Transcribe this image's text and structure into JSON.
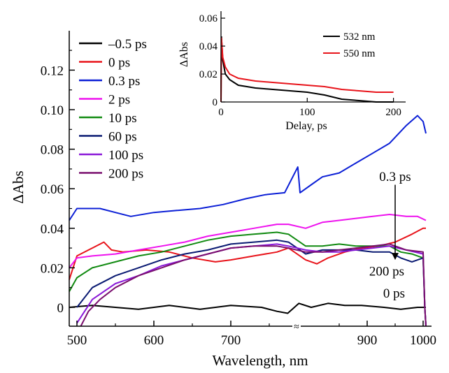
{
  "chart_data": [
    {
      "type": "line",
      "xlabel": "Wavelength, nm",
      "ylabel": "ΔAbs",
      "xticks": [
        500,
        600,
        700,
        900,
        1000
      ],
      "xtick_labels": [
        "500",
        "600",
        "700",
        "900",
        "1000"
      ],
      "yticks": [
        0,
        0.02,
        0.04,
        0.06,
        0.08,
        0.1,
        0.12
      ],
      "ytick_labels": [
        "0",
        "0.02",
        "0.04",
        "0.06",
        "0.08",
        "0.10",
        "0.12"
      ],
      "ylim": [
        -0.009,
        0.135
      ],
      "axis_break": "≈",
      "legend_position": "top-left",
      "series": [
        {
          "name": "–0.5 ps",
          "color": "#000000",
          "points": [
            [
              490,
              0.0
            ],
            [
              520,
              0.001
            ],
            [
              550,
              0.0
            ],
            [
              580,
              -0.001
            ],
            [
              620,
              0.001
            ],
            [
              660,
              -0.001
            ],
            [
              700,
              0.001
            ],
            [
              740,
              0.0
            ],
            [
              760,
              -0.002
            ],
            [
              774,
              -0.003
            ],
            [
              778,
              0.002
            ],
            [
              800,
              0.0
            ],
            [
              830,
              0.002
            ],
            [
              860,
              0.001
            ],
            [
              890,
              0.001
            ],
            [
              930,
              0.0
            ],
            [
              960,
              -0.001
            ],
            [
              990,
              0.0
            ],
            [
              1005,
              0.0
            ]
          ]
        },
        {
          "name": "0 ps",
          "color": "#e8141b",
          "points": [
            [
              490,
              0.014
            ],
            [
              500,
              0.026
            ],
            [
              520,
              0.03
            ],
            [
              535,
              0.033
            ],
            [
              545,
              0.029
            ],
            [
              560,
              0.028
            ],
            [
              590,
              0.029
            ],
            [
              620,
              0.028
            ],
            [
              650,
              0.025
            ],
            [
              680,
              0.023
            ],
            [
              700,
              0.024
            ],
            [
              730,
              0.026
            ],
            [
              760,
              0.028
            ],
            [
              775,
              0.03
            ],
            [
              790,
              0.024
            ],
            [
              810,
              0.022
            ],
            [
              830,
              0.025
            ],
            [
              860,
              0.028
            ],
            [
              890,
              0.03
            ],
            [
              920,
              0.031
            ],
            [
              950,
              0.033
            ],
            [
              980,
              0.037
            ],
            [
              1000,
              0.04
            ],
            [
              1005,
              0.04
            ]
          ]
        },
        {
          "name": "0.3 ps",
          "color": "#0b1fd6",
          "points": [
            [
              490,
              0.044
            ],
            [
              500,
              0.05
            ],
            [
              530,
              0.05
            ],
            [
              550,
              0.048
            ],
            [
              570,
              0.046
            ],
            [
              600,
              0.048
            ],
            [
              630,
              0.049
            ],
            [
              660,
              0.05
            ],
            [
              690,
              0.052
            ],
            [
              720,
              0.055
            ],
            [
              745,
              0.057
            ],
            [
              770,
              0.058
            ],
            [
              776,
              0.071
            ],
            [
              780,
              0.058
            ],
            [
              800,
              0.062
            ],
            [
              820,
              0.066
            ],
            [
              850,
              0.068
            ],
            [
              880,
              0.073
            ],
            [
              910,
              0.078
            ],
            [
              940,
              0.083
            ],
            [
              970,
              0.092
            ],
            [
              990,
              0.097
            ],
            [
              1000,
              0.094
            ],
            [
              1005,
              0.088
            ]
          ]
        },
        {
          "name": "2 ps",
          "color": "#ee12ee",
          "points": [
            [
              490,
              0.02
            ],
            [
              500,
              0.025
            ],
            [
              520,
              0.026
            ],
            [
              550,
              0.027
            ],
            [
              580,
              0.029
            ],
            [
              610,
              0.031
            ],
            [
              640,
              0.033
            ],
            [
              670,
              0.036
            ],
            [
              700,
              0.038
            ],
            [
              730,
              0.04
            ],
            [
              760,
              0.042
            ],
            [
              775,
              0.042
            ],
            [
              790,
              0.04
            ],
            [
              820,
              0.043
            ],
            [
              850,
              0.044
            ],
            [
              880,
              0.045
            ],
            [
              910,
              0.046
            ],
            [
              940,
              0.047
            ],
            [
              970,
              0.046
            ],
            [
              990,
              0.046
            ],
            [
              1005,
              0.044
            ]
          ]
        },
        {
          "name": "10 ps",
          "color": "#118a11",
          "points": [
            [
              490,
              0.008
            ],
            [
              500,
              0.015
            ],
            [
              520,
              0.02
            ],
            [
              550,
              0.023
            ],
            [
              580,
              0.026
            ],
            [
              610,
              0.028
            ],
            [
              640,
              0.031
            ],
            [
              670,
              0.034
            ],
            [
              700,
              0.036
            ],
            [
              730,
              0.037
            ],
            [
              760,
              0.038
            ],
            [
              775,
              0.037
            ],
            [
              790,
              0.031
            ],
            [
              820,
              0.031
            ],
            [
              850,
              0.032
            ],
            [
              880,
              0.031
            ],
            [
              910,
              0.031
            ],
            [
              940,
              0.031
            ],
            [
              960,
              0.028
            ],
            [
              980,
              0.027
            ],
            [
              1000,
              0.025
            ],
            [
              1003,
              0.0
            ],
            [
              1005,
              -0.012
            ]
          ]
        },
        {
          "name": "60 ps",
          "color": "#0a1a72",
          "points": [
            [
              500,
              0.0
            ],
            [
              520,
              0.01
            ],
            [
              550,
              0.016
            ],
            [
              580,
              0.02
            ],
            [
              610,
              0.024
            ],
            [
              640,
              0.027
            ],
            [
              670,
              0.029
            ],
            [
              700,
              0.032
            ],
            [
              730,
              0.033
            ],
            [
              760,
              0.034
            ],
            [
              775,
              0.033
            ],
            [
              790,
              0.027
            ],
            [
              820,
              0.029
            ],
            [
              850,
              0.029
            ],
            [
              880,
              0.029
            ],
            [
              910,
              0.028
            ],
            [
              940,
              0.028
            ],
            [
              960,
              0.025
            ],
            [
              980,
              0.023
            ],
            [
              1000,
              0.025
            ],
            [
              1003,
              0.0
            ],
            [
              1005,
              -0.012
            ]
          ]
        },
        {
          "name": "100 ps",
          "color": "#8a18d8",
          "points": [
            [
              500,
              -0.008
            ],
            [
              520,
              0.004
            ],
            [
              550,
              0.012
            ],
            [
              580,
              0.016
            ],
            [
              610,
              0.021
            ],
            [
              640,
              0.024
            ],
            [
              670,
              0.027
            ],
            [
              700,
              0.03
            ],
            [
              730,
              0.031
            ],
            [
              760,
              0.032
            ],
            [
              775,
              0.031
            ],
            [
              790,
              0.029
            ],
            [
              820,
              0.028
            ],
            [
              850,
              0.028
            ],
            [
              880,
              0.029
            ],
            [
              910,
              0.03
            ],
            [
              940,
              0.031
            ],
            [
              970,
              0.029
            ],
            [
              1000,
              0.027
            ],
            [
              1003,
              0.0
            ],
            [
              1005,
              -0.012
            ]
          ]
        },
        {
          "name": "200 ps",
          "color": "#7a0f6e",
          "points": [
            [
              505,
              -0.012
            ],
            [
              515,
              -0.002
            ],
            [
              530,
              0.004
            ],
            [
              550,
              0.01
            ],
            [
              580,
              0.016
            ],
            [
              610,
              0.02
            ],
            [
              640,
              0.024
            ],
            [
              670,
              0.027
            ],
            [
              700,
              0.03
            ],
            [
              730,
              0.031
            ],
            [
              760,
              0.031
            ],
            [
              775,
              0.03
            ],
            [
              790,
              0.028
            ],
            [
              820,
              0.028
            ],
            [
              850,
              0.029
            ],
            [
              880,
              0.03
            ],
            [
              910,
              0.031
            ],
            [
              940,
              0.032
            ],
            [
              970,
              0.029
            ],
            [
              1000,
              0.028
            ],
            [
              1003,
              0.0
            ],
            [
              1005,
              -0.012
            ]
          ]
        }
      ],
      "annotations": [
        {
          "text": "0.3 ps",
          "x": 950,
          "y": 0.064
        },
        {
          "text": "200 ps",
          "x": 935,
          "y": 0.016
        },
        {
          "text": "0 ps",
          "x": 948,
          "y": 0.005
        }
      ],
      "arrow": {
        "x": 950,
        "from": 0.062,
        "to": 0.024
      }
    },
    {
      "type": "line",
      "role": "inset",
      "xlabel": "Delay, ps",
      "ylabel": "ΔAbs",
      "xlim": [
        0,
        210
      ],
      "ylim": [
        0,
        0.063
      ],
      "xticks": [
        0,
        100,
        200
      ],
      "xtick_labels": [
        "0",
        "100",
        "200"
      ],
      "yticks": [
        0,
        0.02,
        0.04,
        0.06
      ],
      "ytick_labels": [
        "0",
        "0.02",
        "0.04",
        "0.06"
      ],
      "legend_position": "top-right",
      "series": [
        {
          "name": "532 nm",
          "color": "#000000",
          "points": [
            [
              0,
              0.0
            ],
            [
              0.5,
              0.047
            ],
            [
              2,
              0.03
            ],
            [
              5,
              0.02
            ],
            [
              10,
              0.016
            ],
            [
              20,
              0.012
            ],
            [
              40,
              0.01
            ],
            [
              60,
              0.009
            ],
            [
              80,
              0.008
            ],
            [
              100,
              0.007
            ],
            [
              120,
              0.005
            ],
            [
              140,
              0.002
            ],
            [
              160,
              0.001
            ],
            [
              180,
              0.0
            ],
            [
              200,
              0.0
            ]
          ]
        },
        {
          "name": "550 nm",
          "color": "#e8141b",
          "points": [
            [
              0,
              0.0
            ],
            [
              0.5,
              0.046
            ],
            [
              2,
              0.032
            ],
            [
              5,
              0.025
            ],
            [
              10,
              0.02
            ],
            [
              20,
              0.017
            ],
            [
              40,
              0.015
            ],
            [
              60,
              0.014
            ],
            [
              80,
              0.013
            ],
            [
              100,
              0.012
            ],
            [
              120,
              0.011
            ],
            [
              140,
              0.009
            ],
            [
              160,
              0.008
            ],
            [
              180,
              0.007
            ],
            [
              200,
              0.007
            ]
          ]
        }
      ]
    }
  ]
}
